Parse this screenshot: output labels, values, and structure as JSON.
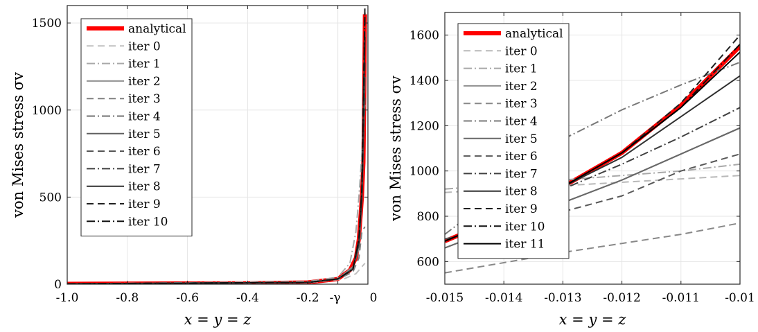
{
  "chart_data": [
    {
      "type": "line",
      "title": "",
      "xlabel": "x = y = z",
      "ylabel": "von Mises stress σv",
      "xlim": [
        -1.0,
        0.0
      ],
      "ylim": [
        0,
        1600
      ],
      "grid": true,
      "legend_position": "top-left",
      "x_ticks": [
        -1.0,
        -0.8,
        -0.6,
        -0.4,
        -0.2,
        -0.1,
        0.0
      ],
      "x_tick_labels": [
        "-1.0",
        "-0.8",
        "-0.6",
        "-0.4",
        "-0.2",
        "-γ",
        "0"
      ],
      "y_ticks": [
        0,
        500,
        1000,
        1500
      ],
      "y_tick_labels": [
        "0",
        "500",
        "1000",
        "1500"
      ],
      "series": [
        {
          "name": "analytical",
          "color": "#ff0000",
          "dash": "solid",
          "width": 6,
          "x": [
            -1.0,
            -0.4,
            -0.2,
            -0.1,
            -0.06,
            -0.04,
            -0.03,
            -0.02,
            -0.015,
            -0.012,
            -0.01
          ],
          "y": [
            2,
            5,
            10,
            30,
            80,
            150,
            260,
            500,
            700,
            1100,
            1550
          ]
        },
        {
          "name": "iter 0",
          "color": "#c0c0c0",
          "dash": "10,6",
          "width": 2,
          "x": [
            -1.0,
            -0.2,
            -0.08,
            -0.04,
            -0.02,
            -0.01
          ],
          "y": [
            2,
            8,
            30,
            60,
            100,
            120
          ]
        },
        {
          "name": "iter 1",
          "color": "#a8a8a8",
          "dash": "12,4,2,4",
          "width": 2,
          "x": [
            -1.0,
            -0.2,
            -0.1,
            -0.06,
            -0.04,
            -0.03,
            -0.02,
            -0.015,
            -0.01
          ],
          "y": [
            2,
            15,
            40,
            120,
            300,
            500,
            750,
            950,
            1030
          ]
        },
        {
          "name": "iter 2",
          "color": "#909090",
          "dash": "solid",
          "width": 2,
          "x": [
            -1.0,
            -0.2,
            -0.1,
            -0.05,
            -0.03,
            -0.02,
            -0.01
          ],
          "y": [
            2,
            10,
            30,
            100,
            200,
            500,
            1190
          ]
        },
        {
          "name": "iter 3",
          "color": "#808080",
          "dash": "10,6",
          "width": 2,
          "x": [
            -1.0,
            -0.2,
            -0.1,
            -0.05,
            -0.03,
            -0.02,
            -0.01
          ],
          "y": [
            2,
            10,
            28,
            70,
            150,
            300,
            330
          ]
        },
        {
          "name": "iter 4",
          "color": "#707070",
          "dash": "12,4,2,4",
          "width": 2,
          "x": [
            -1.0,
            -0.2,
            -0.1,
            -0.05,
            -0.03,
            -0.02,
            -0.01
          ],
          "y": [
            2,
            10,
            30,
            90,
            250,
            550,
            1480
          ]
        },
        {
          "name": "iter 5",
          "color": "#606060",
          "dash": "solid",
          "width": 2,
          "x": [
            -1.0,
            -0.2,
            -0.1,
            -0.05,
            -0.03,
            -0.02,
            -0.01
          ],
          "y": [
            2,
            10,
            30,
            90,
            230,
            500,
            1190
          ]
        },
        {
          "name": "iter 6",
          "color": "#505050",
          "dash": "10,6",
          "width": 2,
          "x": [
            -1.0,
            -0.2,
            -0.1,
            -0.05,
            -0.03,
            -0.02,
            -0.01
          ],
          "y": [
            2,
            10,
            30,
            85,
            220,
            480,
            1070
          ]
        },
        {
          "name": "iter 7",
          "color": "#404040",
          "dash": "12,4,2,4",
          "width": 2,
          "x": [
            -1.0,
            -0.2,
            -0.1,
            -0.05,
            -0.03,
            -0.02,
            -0.01
          ],
          "y": [
            2,
            10,
            30,
            85,
            240,
            520,
            1280
          ]
        },
        {
          "name": "iter 8",
          "color": "#303030",
          "dash": "solid",
          "width": 2,
          "x": [
            -1.0,
            -0.2,
            -0.1,
            -0.05,
            -0.03,
            -0.02,
            -0.01
          ],
          "y": [
            2,
            10,
            30,
            85,
            240,
            520,
            1420
          ]
        },
        {
          "name": "iter 9",
          "color": "#202020",
          "dash": "10,6",
          "width": 2,
          "x": [
            -1.0,
            -0.2,
            -0.1,
            -0.05,
            -0.03,
            -0.02,
            -0.01
          ],
          "y": [
            2,
            10,
            30,
            85,
            260,
            550,
            1600
          ]
        },
        {
          "name": "iter 10",
          "color": "#101010",
          "dash": "12,4,2,4",
          "width": 2,
          "x": [
            -1.0,
            -0.2,
            -0.1,
            -0.05,
            -0.03,
            -0.02,
            -0.01
          ],
          "y": [
            2,
            10,
            30,
            85,
            255,
            545,
            1560
          ]
        }
      ]
    },
    {
      "type": "line",
      "title": "",
      "xlabel": "x = y = z",
      "ylabel": "von Mises stress σv",
      "xlim": [
        -0.015,
        -0.01
      ],
      "ylim": [
        500,
        1700
      ],
      "grid": true,
      "legend_position": "top-left",
      "x_ticks": [
        -0.015,
        -0.014,
        -0.013,
        -0.012,
        -0.011,
        -0.01
      ],
      "x_tick_labels": [
        "-0.015",
        "-0.014",
        "-0.013",
        "-0.012",
        "-0.011",
        "-0.01"
      ],
      "y_ticks": [
        600,
        800,
        1000,
        1200,
        1400,
        1600
      ],
      "y_tick_labels": [
        "600",
        "800",
        "1000",
        "1200",
        "1400",
        "1600"
      ],
      "series": [
        {
          "name": "analytical",
          "color": "#ff0000",
          "dash": "solid",
          "width": 6,
          "x": [
            -0.015,
            -0.014,
            -0.013,
            -0.012,
            -0.011,
            -0.01
          ],
          "y": [
            690,
            800,
            930,
            1080,
            1290,
            1550
          ]
        },
        {
          "name": "iter 0",
          "color": "#b8b8b8",
          "dash": "10,6",
          "width": 2,
          "x": [
            -0.015,
            -0.014,
            -0.013,
            -0.012,
            -0.011,
            -0.01
          ],
          "y": [
            905,
            920,
            935,
            950,
            965,
            980
          ]
        },
        {
          "name": "iter 1",
          "color": "#a8a8a8",
          "dash": "12,4,2,4",
          "width": 2,
          "x": [
            -0.015,
            -0.014,
            -0.013,
            -0.012,
            -0.011,
            -0.01
          ],
          "y": [
            920,
            940,
            960,
            980,
            1000,
            1030
          ]
        },
        {
          "name": "iter 2",
          "color": "#909090",
          "dash": "solid",
          "width": 2,
          "x": [
            -0.015,
            -0.014,
            -0.013,
            -0.012,
            -0.011,
            -0.01
          ],
          "y": [
            660,
            760,
            860,
            960,
            1075,
            1190
          ]
        },
        {
          "name": "iter 3",
          "color": "#888888",
          "dash": "10,6",
          "width": 2,
          "x": [
            -0.015,
            -0.014,
            -0.013,
            -0.012,
            -0.011,
            -0.01
          ],
          "y": [
            550,
            595,
            640,
            680,
            720,
            770
          ]
        },
        {
          "name": "iter 4",
          "color": "#787878",
          "dash": "12,4,2,4",
          "width": 2,
          "x": [
            -0.015,
            -0.014,
            -0.013,
            -0.012,
            -0.011,
            -0.01
          ],
          "y": [
            720,
            920,
            1140,
            1270,
            1380,
            1480
          ]
        },
        {
          "name": "iter 5",
          "color": "#686868",
          "dash": "solid",
          "width": 2,
          "x": [
            -0.015,
            -0.014,
            -0.013,
            -0.012,
            -0.011,
            -0.01
          ],
          "y": [
            660,
            760,
            860,
            960,
            1075,
            1190
          ]
        },
        {
          "name": "iter 6",
          "color": "#585858",
          "dash": "10,6",
          "width": 2,
          "x": [
            -0.015,
            -0.014,
            -0.013,
            -0.012,
            -0.011,
            -0.01
          ],
          "y": [
            700,
            760,
            820,
            890,
            1000,
            1075
          ]
        },
        {
          "name": "iter 7",
          "color": "#404040",
          "dash": "12,4,2,4",
          "width": 2,
          "x": [
            -0.015,
            -0.014,
            -0.013,
            -0.012,
            -0.011,
            -0.01
          ],
          "y": [
            690,
            800,
            920,
            1030,
            1150,
            1280
          ]
        },
        {
          "name": "iter 8",
          "color": "#303030",
          "dash": "solid",
          "width": 2,
          "x": [
            -0.015,
            -0.014,
            -0.013,
            -0.012,
            -0.011,
            -0.01
          ],
          "y": [
            690,
            800,
            930,
            1060,
            1240,
            1420
          ]
        },
        {
          "name": "iter 9",
          "color": "#202020",
          "dash": "10,6",
          "width": 2,
          "x": [
            -0.015,
            -0.014,
            -0.013,
            -0.012,
            -0.011,
            -0.01
          ],
          "y": [
            690,
            800,
            930,
            1080,
            1300,
            1600
          ]
        },
        {
          "name": "iter 10",
          "color": "#101010",
          "dash": "12,4,2,4",
          "width": 2,
          "x": [
            -0.015,
            -0.014,
            -0.013,
            -0.012,
            -0.011,
            -0.01
          ],
          "y": [
            690,
            800,
            930,
            1080,
            1280,
            1560
          ]
        },
        {
          "name": "iter 11",
          "color": "#000000",
          "dash": "solid",
          "width": 2,
          "x": [
            -0.015,
            -0.014,
            -0.013,
            -0.012,
            -0.011,
            -0.01
          ],
          "y": [
            690,
            800,
            930,
            1080,
            1280,
            1525
          ]
        }
      ]
    }
  ]
}
